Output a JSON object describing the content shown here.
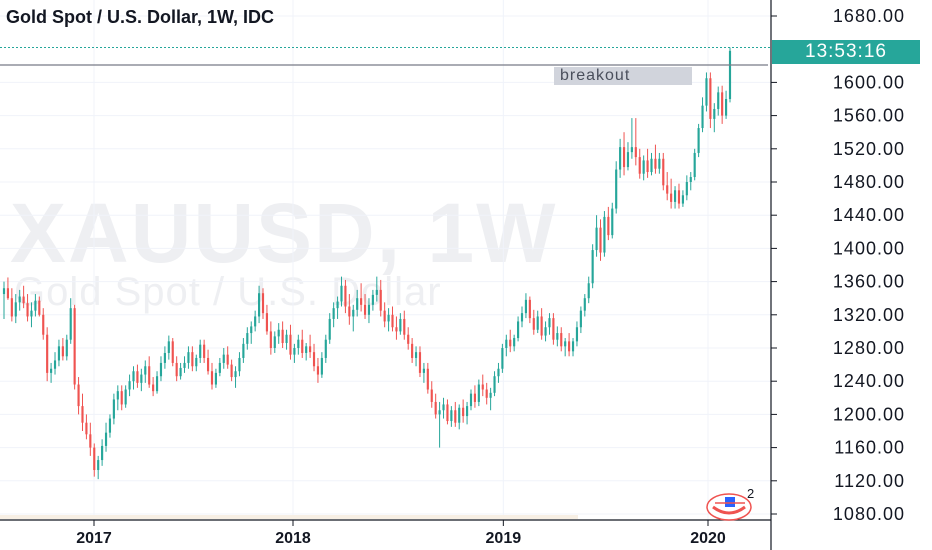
{
  "header": {
    "title": "Gold Spot / U.S. Dollar, 1W, IDC"
  },
  "watermark": {
    "symbol": "XAUUSD, 1W",
    "description": "Gold Spot / U.S. Dollar"
  },
  "annotation": {
    "label": "breakout",
    "level": 1621
  },
  "price_badge": {
    "label": "13:53:16",
    "price": 1642
  },
  "logo": {
    "badge_count": "2"
  },
  "colors": {
    "up": "#26a69a",
    "down": "#ef5350",
    "badge": "#26a69a",
    "axis_line": "#131722",
    "text": "#131722"
  },
  "chart_data": {
    "type": "candlestick",
    "title": "Gold Spot / U.S. Dollar, 1W, IDC",
    "ylim": [
      1066,
      1700
    ],
    "y_ticks": [
      "1680.00",
      "1600.00",
      "1560.00",
      "1520.00",
      "1480.00",
      "1440.00",
      "1400.00",
      "1360.00",
      "1320.00",
      "1280.00",
      "1240.00",
      "1200.00",
      "1160.00",
      "1120.00",
      "1080.00"
    ],
    "x_ticks": [
      "2017",
      "2018",
      "2019",
      "2020"
    ],
    "x_tick_fraction": [
      0.0,
      0.281,
      0.578,
      0.867
    ],
    "horizontal_line": 1621,
    "grid": true,
    "candles": [
      [
        1345,
        1360,
        1315,
        1352
      ],
      [
        1352,
        1365,
        1338,
        1340
      ],
      [
        1340,
        1352,
        1312,
        1318
      ],
      [
        1318,
        1345,
        1310,
        1335
      ],
      [
        1335,
        1350,
        1325,
        1342
      ],
      [
        1342,
        1355,
        1328,
        1334
      ],
      [
        1334,
        1345,
        1312,
        1318
      ],
      [
        1318,
        1335,
        1305,
        1325
      ],
      [
        1325,
        1345,
        1318,
        1337
      ],
      [
        1337,
        1342,
        1318,
        1320
      ],
      [
        1320,
        1328,
        1290,
        1296
      ],
      [
        1296,
        1305,
        1240,
        1250
      ],
      [
        1250,
        1262,
        1238,
        1255
      ],
      [
        1255,
        1275,
        1248,
        1265
      ],
      [
        1265,
        1290,
        1258,
        1282
      ],
      [
        1282,
        1292,
        1265,
        1270
      ],
      [
        1270,
        1296,
        1265,
        1290
      ],
      [
        1290,
        1340,
        1285,
        1328
      ],
      [
        1328,
        1332,
        1230,
        1236
      ],
      [
        1236,
        1245,
        1200,
        1210
      ],
      [
        1210,
        1225,
        1180,
        1190
      ],
      [
        1190,
        1200,
        1170,
        1176
      ],
      [
        1176,
        1190,
        1150,
        1160
      ],
      [
        1160,
        1165,
        1125,
        1133
      ],
      [
        1133,
        1150,
        1122,
        1145
      ],
      [
        1145,
        1170,
        1138,
        1162
      ],
      [
        1162,
        1190,
        1155,
        1178
      ],
      [
        1178,
        1200,
        1172,
        1195
      ],
      [
        1195,
        1225,
        1188,
        1218
      ],
      [
        1218,
        1235,
        1205,
        1228
      ],
      [
        1228,
        1235,
        1205,
        1212
      ],
      [
        1212,
        1235,
        1208,
        1230
      ],
      [
        1230,
        1248,
        1222,
        1240
      ],
      [
        1240,
        1258,
        1230,
        1252
      ],
      [
        1252,
        1260,
        1232,
        1238
      ],
      [
        1238,
        1255,
        1228,
        1248
      ],
      [
        1248,
        1265,
        1238,
        1258
      ],
      [
        1258,
        1270,
        1232,
        1236
      ],
      [
        1236,
        1245,
        1222,
        1228
      ],
      [
        1228,
        1252,
        1225,
        1246
      ],
      [
        1246,
        1270,
        1240,
        1262
      ],
      [
        1262,
        1282,
        1255,
        1274
      ],
      [
        1274,
        1295,
        1266,
        1288
      ],
      [
        1288,
        1292,
        1258,
        1262
      ],
      [
        1262,
        1270,
        1240,
        1246
      ],
      [
        1246,
        1262,
        1242,
        1256
      ],
      [
        1256,
        1270,
        1250,
        1262
      ],
      [
        1262,
        1282,
        1255,
        1275
      ],
      [
        1275,
        1282,
        1252,
        1258
      ],
      [
        1258,
        1272,
        1252,
        1268
      ],
      [
        1268,
        1290,
        1262,
        1284
      ],
      [
        1284,
        1290,
        1262,
        1268
      ],
      [
        1268,
        1278,
        1248,
        1252
      ],
      [
        1252,
        1262,
        1230,
        1236
      ],
      [
        1236,
        1255,
        1232,
        1250
      ],
      [
        1250,
        1268,
        1246,
        1262
      ],
      [
        1262,
        1280,
        1255,
        1272
      ],
      [
        1272,
        1282,
        1255,
        1260
      ],
      [
        1260,
        1266,
        1240,
        1245
      ],
      [
        1245,
        1258,
        1232,
        1252
      ],
      [
        1252,
        1275,
        1246,
        1268
      ],
      [
        1268,
        1292,
        1262,
        1285
      ],
      [
        1285,
        1305,
        1278,
        1298
      ],
      [
        1298,
        1312,
        1285,
        1306
      ],
      [
        1306,
        1325,
        1300,
        1318
      ],
      [
        1318,
        1355,
        1310,
        1346
      ],
      [
        1346,
        1352,
        1315,
        1322
      ],
      [
        1322,
        1332,
        1296,
        1300
      ],
      [
        1300,
        1312,
        1272,
        1280
      ],
      [
        1280,
        1300,
        1274,
        1294
      ],
      [
        1294,
        1310,
        1285,
        1302
      ],
      [
        1302,
        1312,
        1280,
        1286
      ],
      [
        1286,
        1302,
        1278,
        1296
      ],
      [
        1296,
        1308,
        1266,
        1272
      ],
      [
        1272,
        1285,
        1262,
        1280
      ],
      [
        1280,
        1296,
        1272,
        1290
      ],
      [
        1290,
        1302,
        1268,
        1274
      ],
      [
        1274,
        1286,
        1265,
        1282
      ],
      [
        1282,
        1296,
        1268,
        1275
      ],
      [
        1275,
        1285,
        1252,
        1258
      ],
      [
        1258,
        1268,
        1238,
        1248
      ],
      [
        1248,
        1275,
        1244,
        1268
      ],
      [
        1268,
        1296,
        1262,
        1290
      ],
      [
        1290,
        1322,
        1285,
        1315
      ],
      [
        1315,
        1335,
        1305,
        1328
      ],
      [
        1328,
        1342,
        1315,
        1336
      ],
      [
        1336,
        1366,
        1330,
        1355
      ],
      [
        1355,
        1362,
        1322,
        1330
      ],
      [
        1330,
        1345,
        1308,
        1318
      ],
      [
        1318,
        1332,
        1300,
        1326
      ],
      [
        1326,
        1350,
        1318,
        1340
      ],
      [
        1340,
        1358,
        1324,
        1332
      ],
      [
        1332,
        1345,
        1315,
        1320
      ],
      [
        1320,
        1340,
        1310,
        1332
      ],
      [
        1332,
        1350,
        1325,
        1344
      ],
      [
        1344,
        1366,
        1336,
        1350
      ],
      [
        1350,
        1362,
        1318,
        1325
      ],
      [
        1325,
        1335,
        1305,
        1312
      ],
      [
        1312,
        1328,
        1300,
        1320
      ],
      [
        1320,
        1330,
        1300,
        1305
      ],
      [
        1305,
        1318,
        1290,
        1300
      ],
      [
        1300,
        1322,
        1296,
        1315
      ],
      [
        1315,
        1325,
        1290,
        1296
      ],
      [
        1296,
        1305,
        1278,
        1285
      ],
      [
        1285,
        1292,
        1262,
        1268
      ],
      [
        1268,
        1282,
        1258,
        1275
      ],
      [
        1275,
        1282,
        1245,
        1250
      ],
      [
        1250,
        1262,
        1238,
        1255
      ],
      [
        1255,
        1262,
        1225,
        1230
      ],
      [
        1230,
        1240,
        1208,
        1215
      ],
      [
        1215,
        1225,
        1195,
        1200
      ],
      [
        1200,
        1215,
        1160,
        1205
      ],
      [
        1205,
        1220,
        1195,
        1212
      ],
      [
        1212,
        1218,
        1188,
        1192
      ],
      [
        1192,
        1210,
        1185,
        1205
      ],
      [
        1205,
        1215,
        1185,
        1190
      ],
      [
        1190,
        1212,
        1182,
        1208
      ],
      [
        1208,
        1218,
        1190,
        1198
      ],
      [
        1198,
        1215,
        1188,
        1210
      ],
      [
        1210,
        1230,
        1205,
        1225
      ],
      [
        1225,
        1235,
        1208,
        1215
      ],
      [
        1215,
        1242,
        1210,
        1236
      ],
      [
        1236,
        1248,
        1222,
        1230
      ],
      [
        1230,
        1238,
        1212,
        1220
      ],
      [
        1220,
        1232,
        1205,
        1226
      ],
      [
        1226,
        1252,
        1222,
        1246
      ],
      [
        1246,
        1262,
        1238,
        1255
      ],
      [
        1255,
        1285,
        1250,
        1280
      ],
      [
        1280,
        1296,
        1270,
        1290
      ],
      [
        1290,
        1302,
        1275,
        1282
      ],
      [
        1282,
        1296,
        1276,
        1292
      ],
      [
        1292,
        1318,
        1288,
        1312
      ],
      [
        1312,
        1330,
        1305,
        1322
      ],
      [
        1322,
        1346,
        1316,
        1338
      ],
      [
        1338,
        1342,
        1310,
        1316
      ],
      [
        1316,
        1326,
        1296,
        1302
      ],
      [
        1302,
        1325,
        1298,
        1318
      ],
      [
        1318,
        1328,
        1290,
        1295
      ],
      [
        1295,
        1312,
        1288,
        1305
      ],
      [
        1305,
        1322,
        1296,
        1316
      ],
      [
        1316,
        1322,
        1284,
        1290
      ],
      [
        1290,
        1306,
        1282,
        1298
      ],
      [
        1298,
        1305,
        1276,
        1282
      ],
      [
        1282,
        1292,
        1270,
        1288
      ],
      [
        1288,
        1298,
        1270,
        1276
      ],
      [
        1276,
        1292,
        1270,
        1288
      ],
      [
        1288,
        1312,
        1282,
        1305
      ],
      [
        1305,
        1330,
        1298,
        1325
      ],
      [
        1325,
        1345,
        1318,
        1340
      ],
      [
        1340,
        1366,
        1334,
        1358
      ],
      [
        1358,
        1405,
        1352,
        1398
      ],
      [
        1398,
        1440,
        1390,
        1425
      ],
      [
        1425,
        1435,
        1385,
        1395
      ],
      [
        1395,
        1445,
        1390,
        1438
      ],
      [
        1438,
        1450,
        1410,
        1416
      ],
      [
        1416,
        1455,
        1412,
        1448
      ],
      [
        1448,
        1505,
        1442,
        1495
      ],
      [
        1495,
        1532,
        1485,
        1522
      ],
      [
        1522,
        1540,
        1488,
        1498
      ],
      [
        1498,
        1528,
        1494,
        1516
      ],
      [
        1516,
        1557,
        1508,
        1522
      ],
      [
        1522,
        1557,
        1500,
        1510
      ],
      [
        1510,
        1520,
        1484,
        1490
      ],
      [
        1490,
        1512,
        1482,
        1506
      ],
      [
        1506,
        1520,
        1485,
        1492
      ],
      [
        1492,
        1515,
        1488,
        1508
      ],
      [
        1508,
        1525,
        1490,
        1496
      ],
      [
        1496,
        1515,
        1490,
        1508
      ],
      [
        1508,
        1515,
        1470,
        1476
      ],
      [
        1476,
        1492,
        1458,
        1466
      ],
      [
        1466,
        1484,
        1448,
        1456
      ],
      [
        1456,
        1475,
        1448,
        1470
      ],
      [
        1470,
        1478,
        1448,
        1454
      ],
      [
        1454,
        1470,
        1450,
        1464
      ],
      [
        1464,
        1488,
        1458,
        1480
      ],
      [
        1480,
        1492,
        1470,
        1486
      ],
      [
        1486,
        1520,
        1482,
        1515
      ],
      [
        1515,
        1550,
        1510,
        1545
      ],
      [
        1545,
        1582,
        1540,
        1572
      ],
      [
        1572,
        1612,
        1565,
        1605
      ],
      [
        1605,
        1612,
        1545,
        1556
      ],
      [
        1556,
        1575,
        1540,
        1568
      ],
      [
        1568,
        1595,
        1560,
        1588
      ],
      [
        1588,
        1596,
        1550,
        1560
      ],
      [
        1560,
        1590,
        1556,
        1580
      ],
      [
        1580,
        1642,
        1576,
        1638
      ]
    ]
  }
}
